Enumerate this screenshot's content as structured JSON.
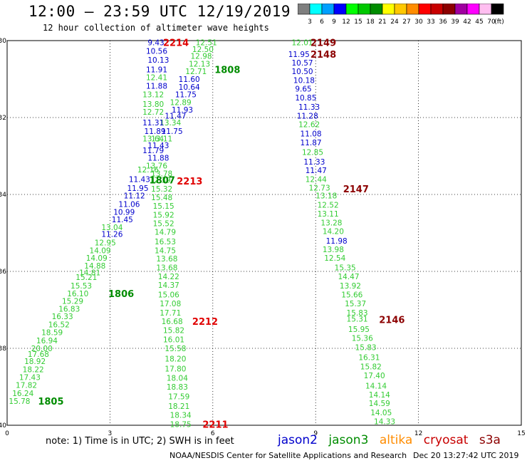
{
  "header": {
    "title": "12:00 – 23:59 UTC 12/19/2019",
    "subtitle": "12 hour collection of altimeter wave heights"
  },
  "colorbar": {
    "unit_label": "(ft)",
    "bins": [
      {
        "label": "3",
        "color": "#7f7f7f"
      },
      {
        "label": "6",
        "color": "#00ffff"
      },
      {
        "label": "9",
        "color": "#00a0ff"
      },
      {
        "label": "12",
        "color": "#0000ff"
      },
      {
        "label": "15",
        "color": "#00ff00"
      },
      {
        "label": "18",
        "color": "#00c800"
      },
      {
        "label": "21",
        "color": "#008c00"
      },
      {
        "label": "24",
        "color": "#ffff00"
      },
      {
        "label": "27",
        "color": "#ffc800"
      },
      {
        "label": "30",
        "color": "#ff8c00"
      },
      {
        "label": "33",
        "color": "#ff0000"
      },
      {
        "label": "36",
        "color": "#c80000"
      },
      {
        "label": "39",
        "color": "#8c0000"
      },
      {
        "label": "42",
        "color": "#a000a0"
      },
      {
        "label": "45",
        "color": "#ff00ff"
      },
      {
        "label": "70",
        "color": "#ffbef0"
      },
      {
        "label": "",
        "color": "#000000"
      }
    ]
  },
  "footer": {
    "note": "note:  1) Time is in UTC;  2) SWH is in feet",
    "legend": [
      {
        "label": "jason2",
        "color": "#0000cc"
      },
      {
        "label": "jason3",
        "color": "#008c00"
      },
      {
        "label": "altika",
        "color": "#ff8c00"
      },
      {
        "label": "cryosat",
        "color": "#c80000"
      },
      {
        "label": "s3a",
        "color": "#8c0000"
      }
    ],
    "credit": "NOAA/NESDIS Center for Satellite Applications and Research",
    "timestamp": "Dec 20 13:27:42 UTC 2019"
  },
  "chart_data": {
    "type": "scatter",
    "xlim": [
      0,
      15
    ],
    "ylim": [
      -40,
      -30
    ],
    "xticks": [
      "0",
      "3",
      "6",
      "9",
      "12",
      "15"
    ],
    "yticks": [
      "-30",
      "-32",
      "-34",
      "-36",
      "-38",
      "-40"
    ],
    "grid": true,
    "colors": {
      "blue": "#0000cc",
      "lightgreen": "#33cc33",
      "green": "#008c00",
      "red": "#e00000",
      "darkred": "#8c0000"
    },
    "points": [
      {
        "x": 4.1,
        "y": -30.05,
        "label": "9.43",
        "c": "blue"
      },
      {
        "x": 5.5,
        "y": -30.05,
        "label": "12.51",
        "c": "lightgreen"
      },
      {
        "x": 8.3,
        "y": -30.05,
        "label": "12.01",
        "c": "lightgreen"
      },
      {
        "x": 4.05,
        "y": -30.27,
        "label": "10.56",
        "c": "blue"
      },
      {
        "x": 5.4,
        "y": -30.22,
        "label": "12.50",
        "c": "lightgreen"
      },
      {
        "x": 8.2,
        "y": -30.35,
        "label": "11.95",
        "c": "blue"
      },
      {
        "x": 4.1,
        "y": -30.5,
        "label": "10.13",
        "c": "blue"
      },
      {
        "x": 5.35,
        "y": -30.4,
        "label": "12.98",
        "c": "lightgreen"
      },
      {
        "x": 8.3,
        "y": -30.57,
        "label": "10.57",
        "c": "blue"
      },
      {
        "x": 4.05,
        "y": -30.75,
        "label": "11.91",
        "c": "blue"
      },
      {
        "x": 5.3,
        "y": -30.6,
        "label": "12.13",
        "c": "lightgreen"
      },
      {
        "x": 8.3,
        "y": -30.8,
        "label": "10.50",
        "c": "blue"
      },
      {
        "x": 4.05,
        "y": -30.95,
        "label": "12.41",
        "c": "lightgreen"
      },
      {
        "x": 5.2,
        "y": -30.8,
        "label": "12.71",
        "c": "lightgreen"
      },
      {
        "x": 8.35,
        "y": -31.03,
        "label": "10.18",
        "c": "blue"
      },
      {
        "x": 5.0,
        "y": -31.0,
        "label": "11.60",
        "c": "blue"
      },
      {
        "x": 4.05,
        "y": -31.18,
        "label": "11.88",
        "c": "blue"
      },
      {
        "x": 5.0,
        "y": -31.2,
        "label": "10.64",
        "c": "blue"
      },
      {
        "x": 8.4,
        "y": -31.25,
        "label": "9.65",
        "c": "blue"
      },
      {
        "x": 3.95,
        "y": -31.4,
        "label": "13.12",
        "c": "lightgreen"
      },
      {
        "x": 4.9,
        "y": -31.4,
        "label": "11.75",
        "c": "blue"
      },
      {
        "x": 8.4,
        "y": -31.48,
        "label": "10.85",
        "c": "blue"
      },
      {
        "x": 4.75,
        "y": -31.6,
        "label": "12.89",
        "c": "lightgreen"
      },
      {
        "x": 3.95,
        "y": -31.65,
        "label": "13.80",
        "c": "lightgreen"
      },
      {
        "x": 8.5,
        "y": -31.72,
        "label": "11.33",
        "c": "blue"
      },
      {
        "x": 4.8,
        "y": -31.8,
        "label": "11.93",
        "c": "blue"
      },
      {
        "x": 3.95,
        "y": -31.85,
        "label": "12.72",
        "c": "lightgreen"
      },
      {
        "x": 4.6,
        "y": -31.95,
        "label": "11.47",
        "c": "blue"
      },
      {
        "x": 8.45,
        "y": -31.95,
        "label": "11.28",
        "c": "blue"
      },
      {
        "x": 4.45,
        "y": -32.13,
        "label": "13.34",
        "c": "lightgreen"
      },
      {
        "x": 3.95,
        "y": -32.13,
        "label": "11.31",
        "c": "blue"
      },
      {
        "x": 8.5,
        "y": -32.18,
        "label": "12.62",
        "c": "lightgreen"
      },
      {
        "x": 4.5,
        "y": -32.35,
        "label": "11.75",
        "c": "blue"
      },
      {
        "x": 4.0,
        "y": -32.35,
        "label": "11.89",
        "c": "blue"
      },
      {
        "x": 8.55,
        "y": -32.42,
        "label": "11.08",
        "c": "blue"
      },
      {
        "x": 3.95,
        "y": -32.55,
        "label": "13.64",
        "c": "lightgreen"
      },
      {
        "x": 4.2,
        "y": -32.55,
        "label": "13.11",
        "c": "lightgreen"
      },
      {
        "x": 8.55,
        "y": -32.65,
        "label": "11.87",
        "c": "blue"
      },
      {
        "x": 4.1,
        "y": -32.72,
        "label": "11.43",
        "c": "blue"
      },
      {
        "x": 3.95,
        "y": -32.85,
        "label": "11.79",
        "c": "blue"
      },
      {
        "x": 8.6,
        "y": -32.9,
        "label": "12.85",
        "c": "lightgreen"
      },
      {
        "x": 4.1,
        "y": -33.05,
        "label": "11.88",
        "c": "blue"
      },
      {
        "x": 4.05,
        "y": -33.25,
        "label": "13.76",
        "c": "lightgreen"
      },
      {
        "x": 8.65,
        "y": -33.15,
        "label": "11.33",
        "c": "blue"
      },
      {
        "x": 3.8,
        "y": -33.35,
        "label": "12.16",
        "c": "lightgreen"
      },
      {
        "x": 4.2,
        "y": -33.45,
        "label": "13.78",
        "c": "lightgreen"
      },
      {
        "x": 8.7,
        "y": -33.37,
        "label": "11.47",
        "c": "blue"
      },
      {
        "x": 3.55,
        "y": -33.6,
        "label": "11.43",
        "c": "blue"
      },
      {
        "x": 4.15,
        "y": -33.62,
        "label": "12.39",
        "c": "lightgreen"
      },
      {
        "x": 8.7,
        "y": -33.6,
        "label": "12.44",
        "c": "lightgreen"
      },
      {
        "x": 3.5,
        "y": -33.83,
        "label": "11.95",
        "c": "blue"
      },
      {
        "x": 4.2,
        "y": -33.85,
        "label": "15.32",
        "c": "lightgreen"
      },
      {
        "x": 8.8,
        "y": -33.82,
        "label": "12.73",
        "c": "lightgreen"
      },
      {
        "x": 3.4,
        "y": -34.03,
        "label": "11.12",
        "c": "blue"
      },
      {
        "x": 4.2,
        "y": -34.07,
        "label": "15.48",
        "c": "lightgreen"
      },
      {
        "x": 9.0,
        "y": -34.03,
        "label": "13.18",
        "c": "lightgreen"
      },
      {
        "x": 3.25,
        "y": -34.25,
        "label": "11.06",
        "c": "blue"
      },
      {
        "x": 4.25,
        "y": -34.3,
        "label": "15.15",
        "c": "lightgreen"
      },
      {
        "x": 9.05,
        "y": -34.27,
        "label": "12.52",
        "c": "lightgreen"
      },
      {
        "x": 3.1,
        "y": -34.45,
        "label": "10.99",
        "c": "blue"
      },
      {
        "x": 4.25,
        "y": -34.53,
        "label": "15.92",
        "c": "lightgreen"
      },
      {
        "x": 9.05,
        "y": -34.5,
        "label": "13.11",
        "c": "lightgreen"
      },
      {
        "x": 3.05,
        "y": -34.65,
        "label": "11.45",
        "c": "blue"
      },
      {
        "x": 4.25,
        "y": -34.75,
        "label": "15.52",
        "c": "lightgreen"
      },
      {
        "x": 9.15,
        "y": -34.73,
        "label": "13.28",
        "c": "lightgreen"
      },
      {
        "x": 2.75,
        "y": -34.85,
        "label": "13.04",
        "c": "lightgreen"
      },
      {
        "x": 4.3,
        "y": -34.97,
        "label": "14.79",
        "c": "lightgreen"
      },
      {
        "x": 9.2,
        "y": -34.95,
        "label": "14.20",
        "c": "lightgreen"
      },
      {
        "x": 2.75,
        "y": -35.03,
        "label": "11.26",
        "c": "blue"
      },
      {
        "x": 2.55,
        "y": -35.25,
        "label": "12.95",
        "c": "lightgreen"
      },
      {
        "x": 4.3,
        "y": -35.22,
        "label": "16.53",
        "c": "lightgreen"
      },
      {
        "x": 9.3,
        "y": -35.2,
        "label": "11.98",
        "c": "blue"
      },
      {
        "x": 2.4,
        "y": -35.45,
        "label": "14.09",
        "c": "lightgreen"
      },
      {
        "x": 4.3,
        "y": -35.45,
        "label": "14.75",
        "c": "lightgreen"
      },
      {
        "x": 9.2,
        "y": -35.43,
        "label": "13.98",
        "c": "lightgreen"
      },
      {
        "x": 2.3,
        "y": -35.65,
        "label": "14.09",
        "c": "lightgreen"
      },
      {
        "x": 4.35,
        "y": -35.67,
        "label": "13.68",
        "c": "lightgreen"
      },
      {
        "x": 9.25,
        "y": -35.65,
        "label": "12.54",
        "c": "lightgreen"
      },
      {
        "x": 2.25,
        "y": -35.85,
        "label": "14.88",
        "c": "lightgreen"
      },
      {
        "x": 2.1,
        "y": -36.03,
        "label": "14.81",
        "c": "lightgreen"
      },
      {
        "x": 4.35,
        "y": -35.9,
        "label": "13.68",
        "c": "lightgreen"
      },
      {
        "x": 9.55,
        "y": -35.9,
        "label": "15.35",
        "c": "lightgreen"
      },
      {
        "x": 2.0,
        "y": -36.15,
        "label": "15.21",
        "c": "lightgreen"
      },
      {
        "x": 4.4,
        "y": -36.13,
        "label": "14.22",
        "c": "lightgreen"
      },
      {
        "x": 9.65,
        "y": -36.13,
        "label": "14.47",
        "c": "lightgreen"
      },
      {
        "x": 1.85,
        "y": -36.37,
        "label": "15.53",
        "c": "lightgreen"
      },
      {
        "x": 4.4,
        "y": -36.35,
        "label": "14.37",
        "c": "lightgreen"
      },
      {
        "x": 9.7,
        "y": -36.37,
        "label": "13.92",
        "c": "lightgreen"
      },
      {
        "x": 1.75,
        "y": -36.57,
        "label": "16.10",
        "c": "lightgreen"
      },
      {
        "x": 4.4,
        "y": -36.6,
        "label": "15.06",
        "c": "lightgreen"
      },
      {
        "x": 9.75,
        "y": -36.6,
        "label": "15.66",
        "c": "lightgreen"
      },
      {
        "x": 1.6,
        "y": -36.77,
        "label": "15.29",
        "c": "lightgreen"
      },
      {
        "x": 4.45,
        "y": -36.83,
        "label": "17.08",
        "c": "lightgreen"
      },
      {
        "x": 9.85,
        "y": -36.83,
        "label": "15.37",
        "c": "lightgreen"
      },
      {
        "x": 1.5,
        "y": -36.97,
        "label": "16.83",
        "c": "lightgreen"
      },
      {
        "x": 4.45,
        "y": -37.07,
        "label": "17.71",
        "c": "lightgreen"
      },
      {
        "x": 9.9,
        "y": -37.07,
        "label": "15.83",
        "c": "lightgreen"
      },
      {
        "x": 1.3,
        "y": -37.17,
        "label": "16.33",
        "c": "lightgreen"
      },
      {
        "x": 9.9,
        "y": -37.23,
        "label": "15.31",
        "c": "lightgreen"
      },
      {
        "x": 4.5,
        "y": -37.3,
        "label": "16.68",
        "c": "lightgreen"
      },
      {
        "x": 1.2,
        "y": -37.38,
        "label": "16.52",
        "c": "lightgreen"
      },
      {
        "x": 9.95,
        "y": -37.5,
        "label": "15.95",
        "c": "lightgreen"
      },
      {
        "x": 4.55,
        "y": -37.53,
        "label": "15.82",
        "c": "lightgreen"
      },
      {
        "x": 1.0,
        "y": -37.58,
        "label": "18.59",
        "c": "lightgreen"
      },
      {
        "x": 10.05,
        "y": -37.73,
        "label": "15.36",
        "c": "lightgreen"
      },
      {
        "x": 4.55,
        "y": -37.77,
        "label": "16.01",
        "c": "lightgreen"
      },
      {
        "x": 0.85,
        "y": -37.8,
        "label": "16.94",
        "c": "lightgreen"
      },
      {
        "x": 10.15,
        "y": -37.97,
        "label": "15.83",
        "c": "lightgreen"
      },
      {
        "x": 4.6,
        "y": -38.0,
        "label": "15.58",
        "c": "lightgreen"
      },
      {
        "x": 0.7,
        "y": -38.0,
        "label": "20.00",
        "c": "lightgreen"
      },
      {
        "x": 0.6,
        "y": -38.15,
        "label": "17.68",
        "c": "lightgreen"
      },
      {
        "x": 10.25,
        "y": -38.23,
        "label": "16.31",
        "c": "lightgreen"
      },
      {
        "x": 4.6,
        "y": -38.27,
        "label": "18.20",
        "c": "lightgreen"
      },
      {
        "x": 0.5,
        "y": -38.33,
        "label": "18.92",
        "c": "lightgreen"
      },
      {
        "x": 10.3,
        "y": -38.47,
        "label": "15.82",
        "c": "lightgreen"
      },
      {
        "x": 4.6,
        "y": -38.53,
        "label": "17.80",
        "c": "lightgreen"
      },
      {
        "x": 0.45,
        "y": -38.55,
        "label": "18.22",
        "c": "lightgreen"
      },
      {
        "x": 10.4,
        "y": -38.7,
        "label": "17.40",
        "c": "lightgreen"
      },
      {
        "x": 4.65,
        "y": -38.77,
        "label": "18.04",
        "c": "lightgreen"
      },
      {
        "x": 0.35,
        "y": -38.75,
        "label": "17.43",
        "c": "lightgreen"
      },
      {
        "x": 0.25,
        "y": -38.95,
        "label": "17.82",
        "c": "lightgreen"
      },
      {
        "x": 10.45,
        "y": -38.97,
        "label": "14.14",
        "c": "lightgreen"
      },
      {
        "x": 4.65,
        "y": -39.0,
        "label": "18.83",
        "c": "lightgreen"
      },
      {
        "x": 0.15,
        "y": -39.17,
        "label": "16.24",
        "c": "lightgreen"
      },
      {
        "x": 10.55,
        "y": -39.2,
        "label": "14.14",
        "c": "lightgreen"
      },
      {
        "x": 4.7,
        "y": -39.25,
        "label": "17.59",
        "c": "lightgreen"
      },
      {
        "x": 0.05,
        "y": -39.37,
        "label": "15.78",
        "c": "lightgreen"
      },
      {
        "x": 10.55,
        "y": -39.43,
        "label": "14.59",
        "c": "lightgreen"
      },
      {
        "x": 4.7,
        "y": -39.5,
        "label": "18.21",
        "c": "lightgreen"
      },
      {
        "x": 10.6,
        "y": -39.67,
        "label": "14.05",
        "c": "lightgreen"
      },
      {
        "x": 4.75,
        "y": -39.73,
        "label": "18.34",
        "c": "lightgreen"
      },
      {
        "x": 10.7,
        "y": -39.9,
        "label": "14.33",
        "c": "lightgreen"
      },
      {
        "x": 4.75,
        "y": -39.97,
        "label": "18.75",
        "c": "lightgreen"
      }
    ],
    "time_labels": [
      {
        "x": 4.55,
        "y": -30.05,
        "label": "2214",
        "c": "red"
      },
      {
        "x": 8.85,
        "y": -30.05,
        "label": "2149",
        "c": "darkred"
      },
      {
        "x": 8.85,
        "y": -30.35,
        "label": "2148",
        "c": "darkred"
      },
      {
        "x": 6.05,
        "y": -30.75,
        "label": "1808",
        "c": "green"
      },
      {
        "x": 4.15,
        "y": -33.62,
        "label": "1807",
        "c": "green"
      },
      {
        "x": 4.95,
        "y": -33.65,
        "label": "2213",
        "c": "red"
      },
      {
        "x": 9.8,
        "y": -33.85,
        "label": "2147",
        "c": "darkred"
      },
      {
        "x": 2.95,
        "y": -36.57,
        "label": "1806",
        "c": "green"
      },
      {
        "x": 10.85,
        "y": -37.25,
        "label": "2146",
        "c": "darkred"
      },
      {
        "x": 5.4,
        "y": -37.3,
        "label": "2212",
        "c": "red"
      },
      {
        "x": 0.9,
        "y": -39.37,
        "label": "1805",
        "c": "green"
      },
      {
        "x": 5.7,
        "y": -39.97,
        "label": "2211",
        "c": "red"
      }
    ]
  }
}
